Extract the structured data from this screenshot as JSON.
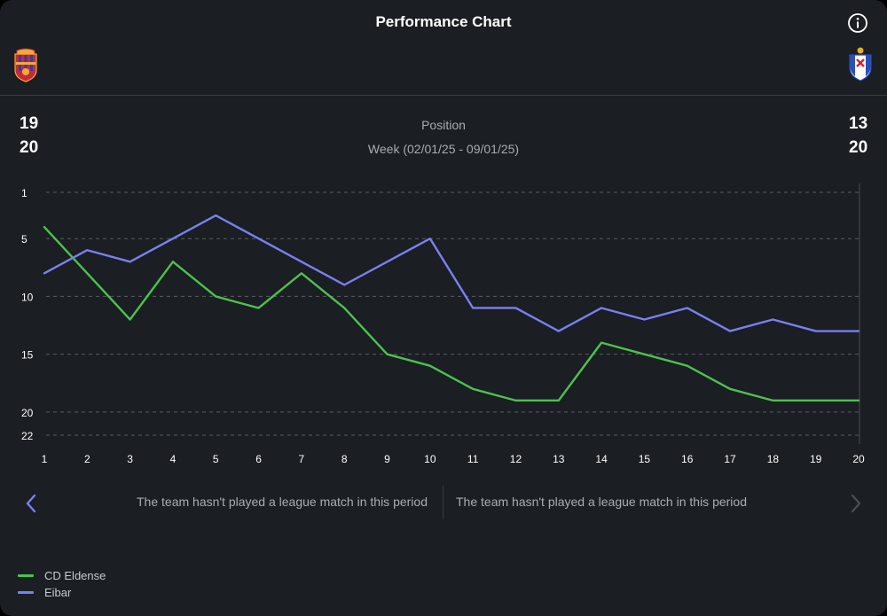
{
  "header": {
    "title": "Performance Chart"
  },
  "teams": {
    "home": {
      "name": "CD Eldense",
      "position": "19",
      "total": "20",
      "color": "#4cc24e"
    },
    "away": {
      "name": "Eibar",
      "position": "13",
      "total": "20",
      "color": "#7b7ff0"
    }
  },
  "stat": {
    "label": "Position",
    "week": "Week (02/01/25 - 09/01/25)"
  },
  "messages": {
    "left": "The team hasn't played a league match in this period",
    "right": "The team hasn't played a league match in this period"
  },
  "icons": {
    "info": "info-icon",
    "prev": "chevron-left-icon",
    "next": "chevron-right-icon"
  },
  "chart_data": {
    "type": "line",
    "x": [
      1,
      2,
      3,
      4,
      5,
      6,
      7,
      8,
      9,
      10,
      11,
      12,
      13,
      14,
      15,
      16,
      17,
      18,
      19,
      20
    ],
    "y_ticks": [
      1,
      5,
      10,
      15,
      20,
      22
    ],
    "ylim": [
      1,
      22
    ],
    "y_inverted": true,
    "grid": true,
    "legend_position": "bottom-left",
    "series": [
      {
        "name": "CD Eldense",
        "color": "#4cc24e",
        "values": [
          4,
          8,
          12,
          7,
          10,
          11,
          8,
          11,
          15,
          16,
          18,
          19,
          19,
          14,
          15,
          16,
          18,
          19,
          19,
          19
        ]
      },
      {
        "name": "Eibar",
        "color": "#7b7ff0",
        "values": [
          8,
          6,
          7,
          5,
          3,
          5,
          7,
          9,
          7,
          5,
          11,
          11,
          13,
          11,
          12,
          11,
          13,
          12,
          13,
          13
        ]
      }
    ]
  }
}
